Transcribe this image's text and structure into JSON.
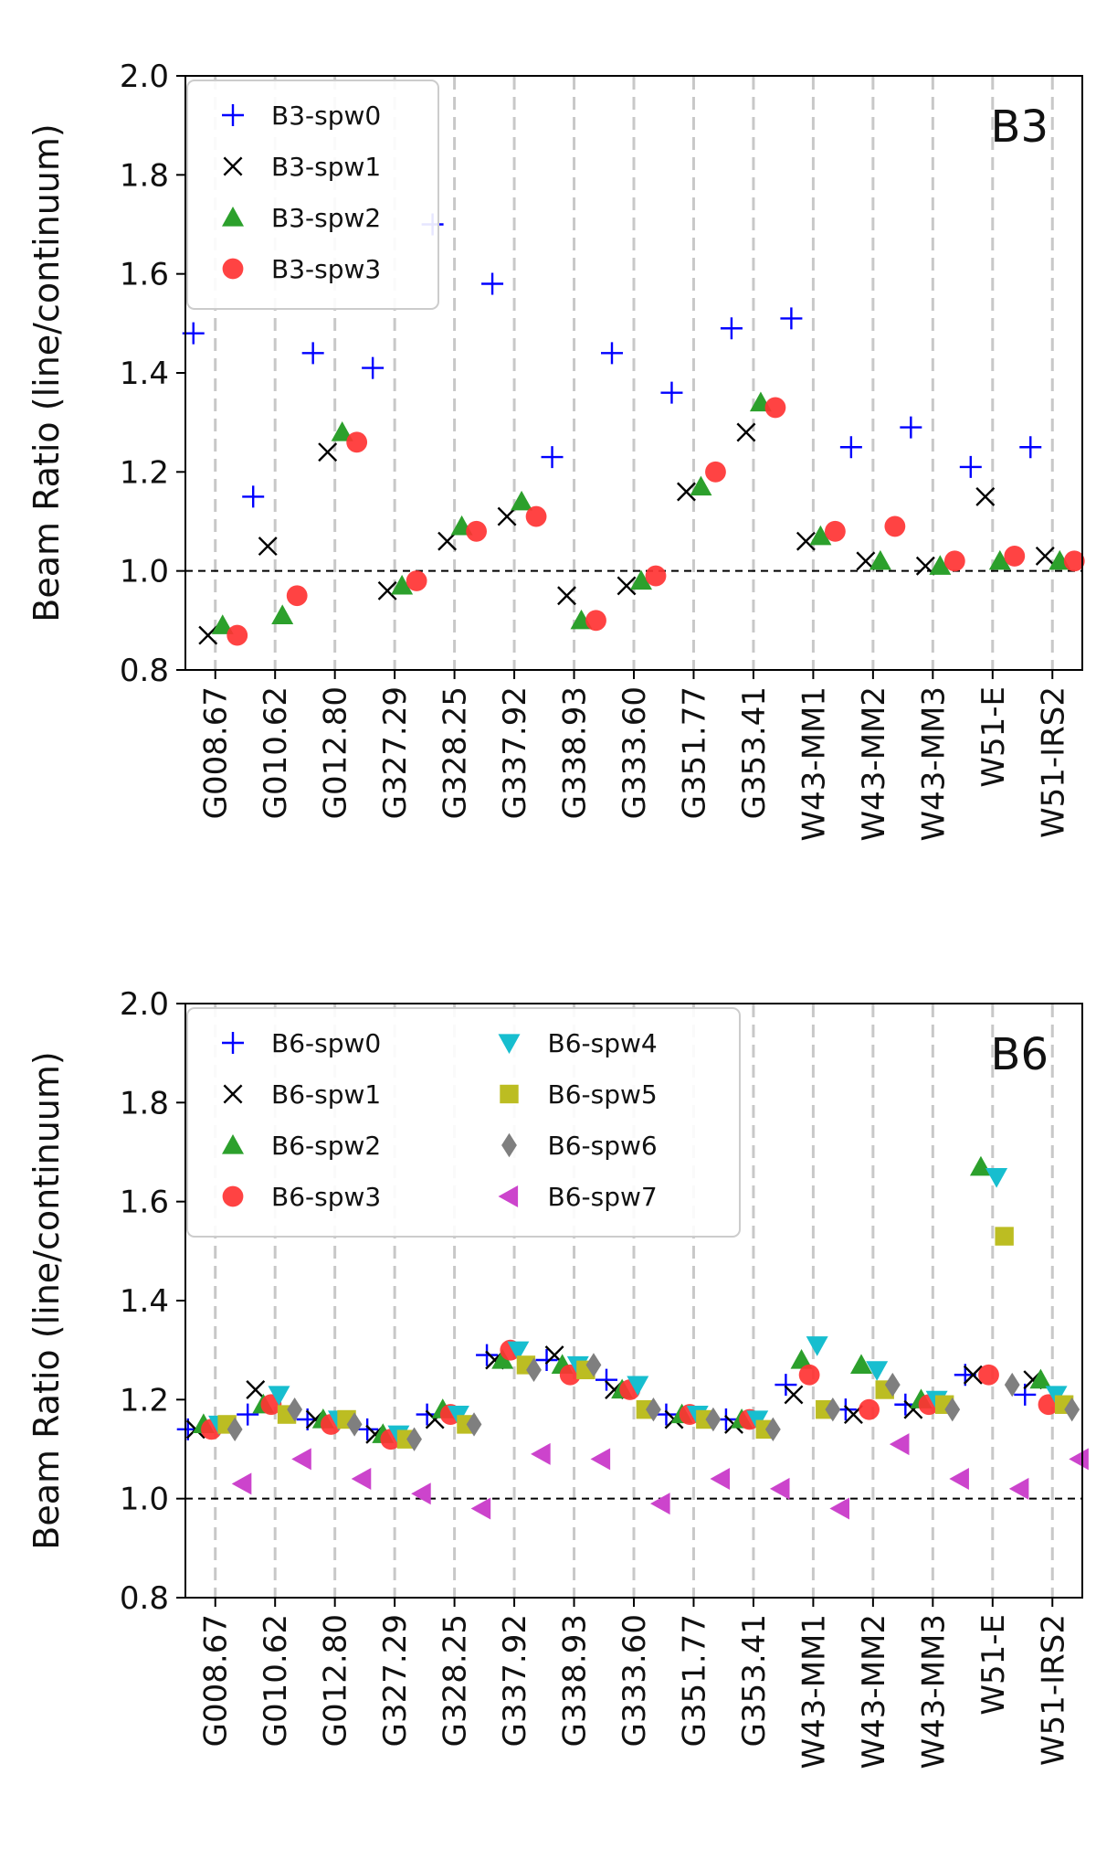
{
  "chart_data": [
    {
      "type": "scatter",
      "panel_label": "B3",
      "ylabel": "Beam Ratio (line/continuum)",
      "ylim": [
        0.8,
        2.0
      ],
      "yticks": [
        "0.8",
        "1.0",
        "1.2",
        "1.4",
        "1.6",
        "1.8",
        "2.0"
      ],
      "reference_line": 1.0,
      "legend_position": "top-left",
      "categories": [
        "G008.67",
        "G010.62",
        "G012.80",
        "G327.29",
        "G328.25",
        "G337.92",
        "G338.93",
        "G333.60",
        "G351.77",
        "G353.41",
        "W43-MM1",
        "W43-MM2",
        "W43-MM3",
        "W51-E",
        "W51-IRS2"
      ],
      "series": [
        {
          "name": "B3-spw0",
          "marker": "plus",
          "color": "#0000ff",
          "values": [
            1.48,
            1.15,
            1.44,
            1.41,
            1.7,
            1.58,
            1.23,
            1.44,
            1.36,
            1.49,
            1.51,
            1.25,
            1.29,
            1.21,
            1.25
          ]
        },
        {
          "name": "B3-spw1",
          "marker": "cross",
          "color": "#000000",
          "values": [
            0.87,
            1.05,
            1.24,
            0.96,
            1.06,
            1.11,
            0.95,
            0.97,
            1.16,
            1.28,
            1.06,
            1.02,
            1.01,
            1.15,
            1.03
          ]
        },
        {
          "name": "B3-spw2",
          "marker": "triangle-up",
          "color": "#2ca02c",
          "values": [
            0.89,
            0.91,
            1.28,
            0.97,
            1.09,
            1.14,
            0.9,
            0.98,
            1.17,
            1.34,
            1.07,
            1.02,
            1.01,
            1.02,
            1.02
          ]
        },
        {
          "name": "B3-spw3",
          "marker": "circle",
          "color": "#ff3333",
          "values": [
            0.87,
            0.95,
            1.26,
            0.98,
            1.08,
            1.11,
            0.9,
            0.99,
            1.2,
            1.33,
            1.08,
            1.09,
            1.02,
            1.03,
            1.02
          ]
        }
      ]
    },
    {
      "type": "scatter",
      "panel_label": "B6",
      "ylabel": "Beam Ratio (line/continuum)",
      "ylim": [
        0.8,
        2.0
      ],
      "yticks": [
        "0.8",
        "1.0",
        "1.2",
        "1.4",
        "1.6",
        "1.8",
        "2.0"
      ],
      "reference_line": 1.0,
      "legend_position": "top-left",
      "categories": [
        "G008.67",
        "G010.62",
        "G012.80",
        "G327.29",
        "G328.25",
        "G337.92",
        "G338.93",
        "G333.60",
        "G351.77",
        "G353.41",
        "W43-MM1",
        "W43-MM2",
        "W43-MM3",
        "W51-E",
        "W51-IRS2"
      ],
      "series": [
        {
          "name": "B6-spw0",
          "marker": "plus",
          "color": "#0000ff",
          "values": [
            1.14,
            1.17,
            1.16,
            1.14,
            1.17,
            1.29,
            1.28,
            1.24,
            1.17,
            1.16,
            1.23,
            1.18,
            1.19,
            1.25,
            1.21
          ]
        },
        {
          "name": "B6-spw1",
          "marker": "cross",
          "color": "#000000",
          "values": [
            1.14,
            1.22,
            1.16,
            1.13,
            1.16,
            1.28,
            1.29,
            1.22,
            1.16,
            1.15,
            1.21,
            1.17,
            1.18,
            1.25,
            1.24
          ]
        },
        {
          "name": "B6-spw2",
          "marker": "triangle-up",
          "color": "#2ca02c",
          "values": [
            1.15,
            1.19,
            1.16,
            1.13,
            1.18,
            1.28,
            1.27,
            1.22,
            1.17,
            1.16,
            1.28,
            1.27,
            1.2,
            1.67,
            1.24
          ]
        },
        {
          "name": "B6-spw3",
          "marker": "circle",
          "color": "#ff3333",
          "values": [
            1.14,
            1.19,
            1.15,
            1.12,
            1.17,
            1.3,
            1.25,
            1.22,
            1.17,
            1.16,
            1.25,
            1.18,
            1.19,
            1.25,
            1.19
          ]
        },
        {
          "name": "B6-spw4",
          "marker": "triangle-down",
          "color": "#17becf",
          "values": [
            1.15,
            1.21,
            1.16,
            1.13,
            1.17,
            1.3,
            1.27,
            1.23,
            1.17,
            1.16,
            1.31,
            1.26,
            1.2,
            1.65,
            1.21
          ]
        },
        {
          "name": "B6-spw5",
          "marker": "square",
          "color": "#bcbd22",
          "values": [
            1.15,
            1.17,
            1.16,
            1.12,
            1.15,
            1.27,
            1.26,
            1.18,
            1.16,
            1.14,
            1.18,
            1.22,
            1.19,
            1.53,
            1.19
          ]
        },
        {
          "name": "B6-spw6",
          "marker": "diamond",
          "color": "#7f7f7f",
          "values": [
            1.14,
            1.18,
            1.15,
            1.12,
            1.15,
            1.26,
            1.27,
            1.18,
            1.16,
            1.14,
            1.18,
            1.23,
            1.18,
            1.23,
            1.18
          ]
        },
        {
          "name": "B6-spw7",
          "marker": "triangle-left",
          "color": "#cc44cc",
          "values": [
            1.03,
            1.08,
            1.04,
            1.01,
            0.98,
            1.09,
            1.08,
            0.99,
            1.04,
            1.02,
            0.98,
            1.11,
            1.04,
            1.02,
            1.08
          ]
        }
      ]
    }
  ]
}
